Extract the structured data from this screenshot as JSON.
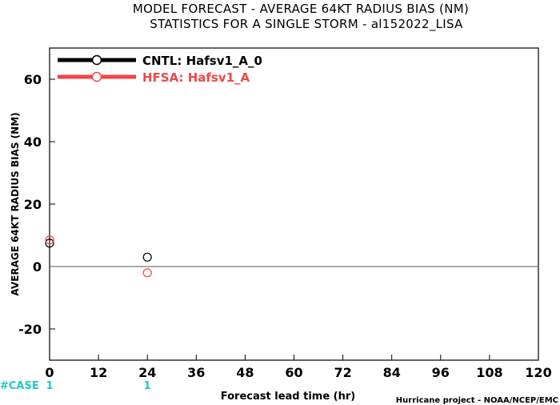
{
  "chart_data": {
    "type": "scatter",
    "title": "MODEL FORECAST - AVERAGE 64KT RADIUS BIAS (NM)",
    "subtitle": "STATISTICS FOR A SINGLE STORM - al152022_LISA",
    "xlabel": "Forecast lead time (hr)",
    "ylabel": "AVERAGE 64KT RADIUS BIAS (NM)",
    "x_ticks": [
      0,
      12,
      24,
      36,
      48,
      60,
      72,
      84,
      96,
      108,
      120
    ],
    "y_ticks": [
      -20,
      0,
      20,
      40,
      60
    ],
    "xlim": [
      0,
      120
    ],
    "ylim": [
      -30,
      70
    ],
    "zero_line": true,
    "grid": false,
    "legend_position": "top-left",
    "series": [
      {
        "name": "CNTL: Hafsv1_A_0",
        "color": "#000000",
        "x": [
          0,
          24
        ],
        "y": [
          7.5,
          3
        ]
      },
      {
        "name": "HFSA: Hafsv1_A",
        "color": "#f04646",
        "x": [
          0,
          24
        ],
        "y": [
          8.5,
          -2
        ]
      }
    ],
    "case_label": "#CASE",
    "case_counts": [
      {
        "x": 0,
        "label": "1"
      },
      {
        "x": 24,
        "label": "1"
      }
    ],
    "case_color": "#1ec8c8",
    "credit": "Hurricane project - NOAA/NCEP/EMC"
  }
}
